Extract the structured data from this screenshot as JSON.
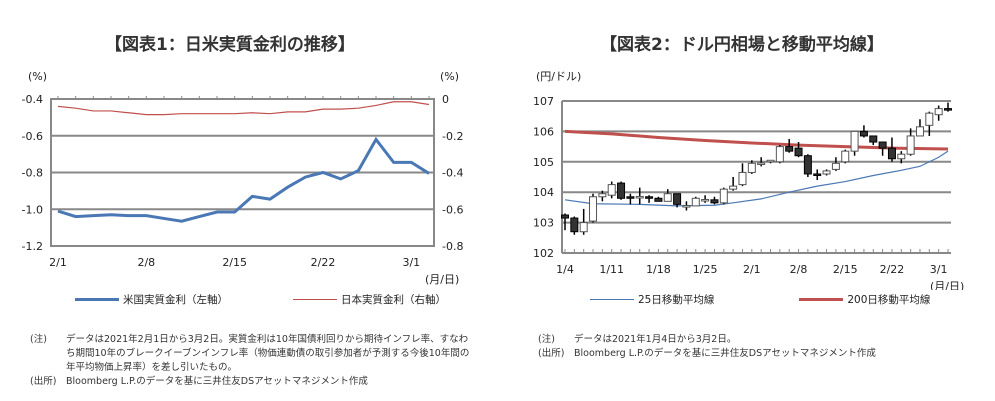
{
  "chart_data": [
    {
      "type": "line",
      "title": "【図表1：日米実質金利の推移】",
      "left_unit": "(%)",
      "right_unit": "(%)",
      "xunit": "(月/日)",
      "x": [
        "2/1",
        "2/2",
        "2/3",
        "2/4",
        "2/5",
        "2/8",
        "2/9",
        "2/10",
        "2/11",
        "2/12",
        "2/15",
        "2/16",
        "2/17",
        "2/18",
        "2/19",
        "2/22",
        "2/23",
        "2/24",
        "2/25",
        "2/26",
        "3/1",
        "3/2"
      ],
      "xticks": [
        "2/1",
        "2/8",
        "2/15",
        "2/22",
        "3/1"
      ],
      "ylim_left": [
        -1.2,
        -0.4
      ],
      "yticks_left": [
        "-0.4",
        "-0.6",
        "-0.8",
        "-1.0",
        "-1.2"
      ],
      "ylim_right": [
        -0.8,
        0
      ],
      "yticks_right": [
        "0",
        "-0.2",
        "-0.4",
        "-0.6",
        "-0.8"
      ],
      "series": [
        {
          "name": "米国実質金利（左軸）",
          "axis": "left",
          "color": "#4a78b5",
          "values": [
            -1.01,
            -1.04,
            -1.035,
            -1.03,
            -1.035,
            -1.035,
            -1.05,
            -1.065,
            -1.04,
            -1.015,
            -1.015,
            -0.93,
            -0.945,
            -0.88,
            -0.825,
            -0.8,
            -0.835,
            -0.79,
            -0.62,
            -0.745,
            -0.745,
            -0.805
          ]
        },
        {
          "name": "日本実質金利（右軸）",
          "axis": "right",
          "color": "#c0504d",
          "values": [
            -0.04,
            -0.05,
            -0.065,
            -0.065,
            -0.075,
            -0.085,
            -0.085,
            -0.08,
            -0.08,
            -0.08,
            -0.08,
            -0.075,
            -0.08,
            -0.07,
            -0.07,
            -0.055,
            -0.055,
            -0.05,
            -0.035,
            -0.015,
            -0.015,
            -0.03
          ]
        }
      ]
    },
    {
      "type": "candlestick",
      "title": "【図表2：ドル円相場と移動平均線】",
      "yunit": "(円/ドル)",
      "xunit": "(月/日)",
      "ylim": [
        102,
        107
      ],
      "yticks": [
        "107",
        "106",
        "105",
        "104",
        "103",
        "102"
      ],
      "xticks": [
        "1/4",
        "1/11",
        "1/18",
        "1/25",
        "2/1",
        "2/8",
        "2/15",
        "2/22",
        "3/1"
      ],
      "tick_index": [
        0,
        5,
        10,
        15,
        20,
        25,
        30,
        35,
        40
      ],
      "ohlc": [
        [
          103.25,
          103.3,
          102.75,
          103.15
        ],
        [
          103.15,
          103.2,
          102.6,
          102.7
        ],
        [
          102.7,
          103.45,
          102.6,
          103.0
        ],
        [
          103.05,
          103.95,
          103.0,
          103.85
        ],
        [
          103.85,
          104.05,
          103.7,
          103.95
        ],
        [
          103.9,
          104.35,
          103.8,
          104.25
        ],
        [
          104.3,
          104.35,
          103.75,
          103.8
        ],
        [
          103.85,
          103.95,
          103.6,
          103.8
        ],
        [
          103.85,
          104.15,
          103.6,
          103.86
        ],
        [
          103.85,
          103.9,
          103.65,
          103.8
        ],
        [
          103.8,
          103.85,
          103.7,
          103.7
        ],
        [
          103.7,
          104.1,
          103.7,
          103.95
        ],
        [
          103.95,
          103.95,
          103.5,
          103.6
        ],
        [
          103.55,
          103.7,
          103.4,
          103.56
        ],
        [
          103.55,
          103.85,
          103.55,
          103.8
        ],
        [
          103.75,
          103.9,
          103.65,
          103.76
        ],
        [
          103.75,
          103.85,
          103.6,
          103.65
        ],
        [
          103.65,
          104.15,
          103.6,
          104.1
        ],
        [
          104.1,
          104.5,
          104.05,
          104.2
        ],
        [
          104.25,
          104.95,
          104.2,
          104.65
        ],
        [
          104.65,
          105.05,
          104.6,
          104.95
        ],
        [
          104.95,
          105.15,
          104.85,
          104.96
        ],
        [
          105.0,
          105.05,
          104.95,
          105.05
        ],
        [
          105.0,
          105.55,
          104.95,
          105.5
        ],
        [
          105.5,
          105.75,
          105.3,
          105.35
        ],
        [
          105.45,
          105.65,
          105.15,
          105.2
        ],
        [
          105.2,
          105.25,
          104.5,
          104.6
        ],
        [
          104.6,
          104.75,
          104.4,
          104.55
        ],
        [
          104.6,
          104.75,
          104.55,
          104.7
        ],
        [
          104.75,
          105.15,
          104.7,
          104.95
        ],
        [
          105.0,
          105.4,
          104.95,
          105.35
        ],
        [
          105.35,
          106.0,
          105.2,
          106.0
        ],
        [
          106.0,
          106.2,
          105.8,
          105.85
        ],
        [
          105.85,
          105.85,
          105.55,
          105.65
        ],
        [
          105.65,
          105.65,
          105.2,
          105.45
        ],
        [
          105.45,
          105.8,
          105.0,
          105.1
        ],
        [
          105.1,
          105.35,
          104.95,
          105.25
        ],
        [
          105.25,
          106.1,
          105.2,
          105.85
        ],
        [
          105.85,
          106.4,
          105.85,
          106.15
        ],
        [
          106.2,
          106.65,
          105.85,
          106.6
        ],
        [
          106.55,
          106.85,
          106.35,
          106.75
        ],
        [
          106.75,
          106.95,
          106.65,
          106.7
        ]
      ],
      "series": [
        {
          "name": "25日移動平均線",
          "color": "#4a78b5",
          "points": [
            [
              0,
              103.75
            ],
            [
              3,
              103.62
            ],
            [
              8,
              103.6
            ],
            [
              12,
              103.55
            ],
            [
              16,
              103.57
            ],
            [
              18,
              103.65
            ],
            [
              21,
              103.78
            ],
            [
              24,
              104.0
            ],
            [
              27,
              104.2
            ],
            [
              30,
              104.35
            ],
            [
              33,
              104.55
            ],
            [
              36,
              104.72
            ],
            [
              38,
              104.85
            ],
            [
              40,
              105.15
            ],
            [
              41,
              105.35
            ]
          ]
        },
        {
          "name": "200日移動平均線",
          "color": "#c0504d",
          "points": [
            [
              0,
              106.0
            ],
            [
              5,
              105.92
            ],
            [
              10,
              105.8
            ],
            [
              15,
              105.7
            ],
            [
              20,
              105.62
            ],
            [
              25,
              105.55
            ],
            [
              30,
              105.5
            ],
            [
              35,
              105.45
            ],
            [
              41,
              105.42
            ]
          ]
        }
      ]
    }
  ],
  "notes_left": {
    "note_label": "(注)",
    "note": "データは2021年2月1日から3月2日。実質金利は10年国債利回りから期待インフレ率、すなわち期間10年のブレークイーブンインフレ率（物価連動債の取引参加者が予測する今後10年間の年平均物価上昇率）を差し引いたもの。",
    "source_label": "(出所)",
    "source": "Bloomberg L.P.のデータを基に三井住友DSアセットマネジメント作成"
  },
  "notes_right": {
    "note_label": "(注)",
    "note": "データは2021年1月4日から3月2日。",
    "source_label": "(出所)",
    "source": "Bloomberg L.P.のデータを基に三井住友DSアセットマネジメント作成"
  }
}
